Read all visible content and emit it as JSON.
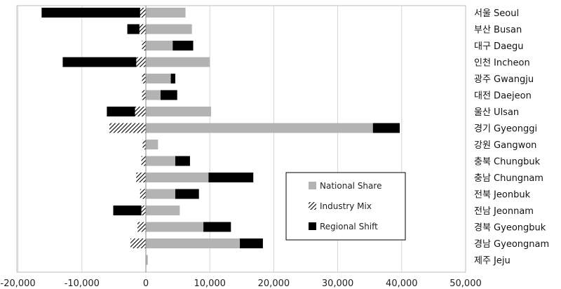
{
  "chart_data": {
    "type": "bar",
    "orientation": "horizontal",
    "stacked": true,
    "categories": [
      "서울 Seoul",
      "부산 Busan",
      "대구 Daegu",
      "인천 Incheon",
      "광주 Gwangju",
      "대전 Daejeon",
      "울산 Ulsan",
      "경기 Gyeonggi",
      "강원 Gangwon",
      "충북 Chungbuk",
      "충남 Chungnam",
      "전북 Jeonbuk",
      "전남 Jeonnam",
      "경북 Gyeongbuk",
      "경남 Gyeongnam",
      "제주 Jeju"
    ],
    "series": [
      {
        "name": "National Share",
        "color": "#b3b3b3",
        "pattern": "solid",
        "values": [
          6200,
          7200,
          4200,
          10000,
          3900,
          2300,
          10200,
          35500,
          1900,
          4600,
          9800,
          4600,
          5300,
          9000,
          14700,
          300
        ]
      },
      {
        "name": "Industry Mix",
        "color": "#000000",
        "pattern": "hatched",
        "values": [
          -900,
          -1000,
          -600,
          -1500,
          -600,
          -600,
          -1700,
          -5700,
          -500,
          -700,
          -1500,
          -900,
          -700,
          -1300,
          -2400,
          0
        ]
      },
      {
        "name": "Regional Shift",
        "color": "#000000",
        "pattern": "solid",
        "values": [
          -15400,
          -1900,
          3200,
          -11500,
          700,
          2600,
          -4400,
          4200,
          0,
          2300,
          7000,
          3700,
          -4400,
          4300,
          3600,
          0
        ]
      }
    ],
    "xlim": [
      -20000,
      50000
    ],
    "xticks": [
      "-20,000",
      "-10,000",
      "0",
      "10,000",
      "20,000",
      "30,000",
      "40,000",
      "50,000"
    ],
    "xtick_values": [
      -20000,
      -10000,
      0,
      10000,
      20000,
      30000,
      40000,
      50000
    ],
    "grid": "vertical",
    "legend_position": "lower-right-inside"
  }
}
